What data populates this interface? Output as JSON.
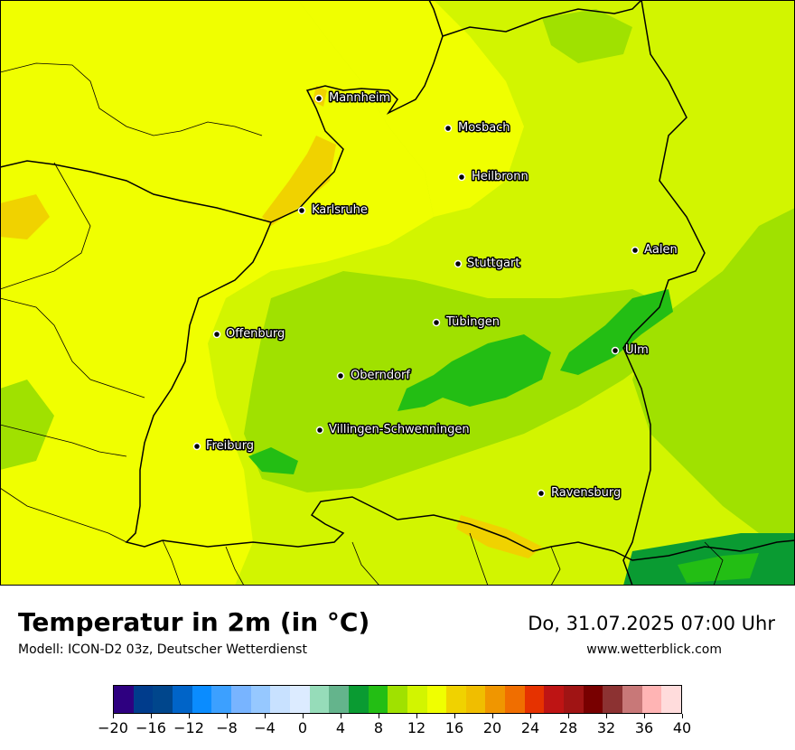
{
  "map": {
    "title": "Temperatur in 2m (in °C)",
    "model": "Modell: ICON-D2 03z, Deutscher Wetterdienst",
    "datetime": "Do, 31.07.2025 07:00 Uhr",
    "website": "www.wetterblick.com",
    "cities": [
      {
        "name": "Mannheim"
      },
      {
        "name": "Mosbach"
      },
      {
        "name": "Heilbronn"
      },
      {
        "name": "Karlsruhe"
      },
      {
        "name": "Aalen"
      },
      {
        "name": "Stuttgart"
      },
      {
        "name": "Tübingen"
      },
      {
        "name": "Offenburg"
      },
      {
        "name": "Ulm"
      },
      {
        "name": "Oberndorf"
      },
      {
        "name": "Villingen-Schwenningen"
      },
      {
        "name": "Freiburg"
      },
      {
        "name": "Ravensburg"
      }
    ]
  },
  "legend": {
    "tick_labels": [
      "−20",
      "−16",
      "−12",
      "−8",
      "−4",
      "0",
      "4",
      "8",
      "12",
      "16",
      "20",
      "24",
      "28",
      "32",
      "36",
      "40"
    ],
    "colors": [
      "#2e0080",
      "#003c8c",
      "#00468c",
      "#0064c8",
      "#0a8cff",
      "#3ca0ff",
      "#78b4ff",
      "#96c8ff",
      "#c8e1ff",
      "#dcebff",
      "#96dcb9",
      "#64b48c",
      "#0a9b32",
      "#23be14",
      "#a0e100",
      "#d2f500",
      "#f0ff00",
      "#f0d200",
      "#f0be00",
      "#f09600",
      "#f06e00",
      "#e63200",
      "#be1414",
      "#a01414",
      "#780000",
      "#8c3232",
      "#c87878",
      "#ffb4b4",
      "#ffdcdc"
    ]
  }
}
